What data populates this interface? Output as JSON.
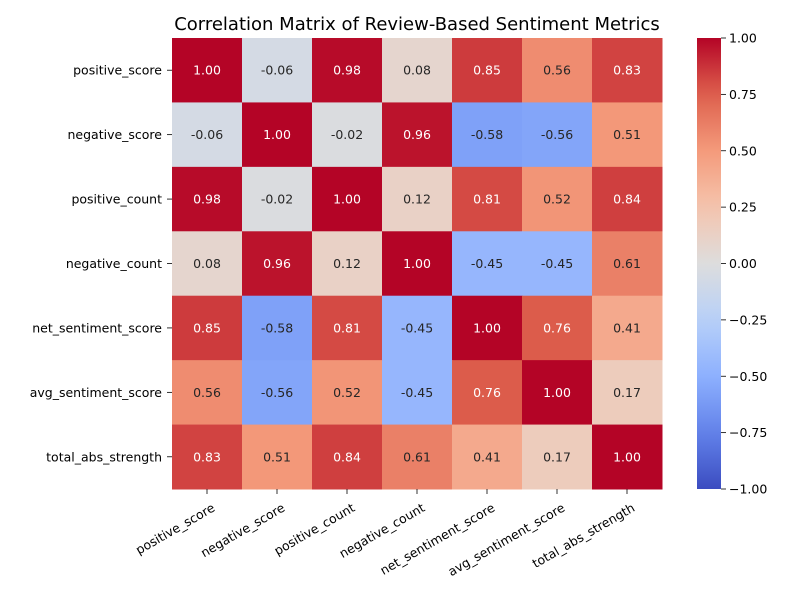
{
  "chart_data": {
    "type": "heatmap",
    "title": "Correlation Matrix of Review-Based Sentiment Metrics",
    "xlabel": "",
    "ylabel": "",
    "row_labels": [
      "positive_score",
      "negative_score",
      "positive_count",
      "negative_count",
      "net_sentiment_score",
      "avg_sentiment_score",
      "total_abs_strength"
    ],
    "col_labels": [
      "positive_score",
      "negative_score",
      "positive_count",
      "negative_count",
      "net_sentiment_score",
      "avg_sentiment_score",
      "total_abs_strength"
    ],
    "values": [
      [
        1.0,
        -0.06,
        0.98,
        0.08,
        0.85,
        0.56,
        0.83
      ],
      [
        -0.06,
        1.0,
        -0.02,
        0.96,
        -0.58,
        -0.56,
        0.51
      ],
      [
        0.98,
        -0.02,
        1.0,
        0.12,
        0.81,
        0.52,
        0.84
      ],
      [
        0.08,
        0.96,
        0.12,
        1.0,
        -0.45,
        -0.45,
        0.61
      ],
      [
        0.85,
        -0.58,
        0.81,
        -0.45,
        1.0,
        0.76,
        0.41
      ],
      [
        0.56,
        -0.56,
        0.52,
        -0.45,
        0.76,
        1.0,
        0.17
      ],
      [
        0.83,
        0.51,
        0.84,
        0.61,
        0.41,
        0.17,
        1.0
      ]
    ],
    "value_format": "2 decimals",
    "colormap": "coolwarm",
    "vmin": -1.0,
    "vmax": 1.0,
    "colorbar_ticks": [
      "1.00",
      "0.75",
      "0.50",
      "0.25",
      "0.00",
      "−0.25",
      "−0.50",
      "−0.75",
      "−1.00"
    ],
    "x_tick_rotation_deg": 30,
    "grid": false,
    "legend": "colorbar-right"
  }
}
